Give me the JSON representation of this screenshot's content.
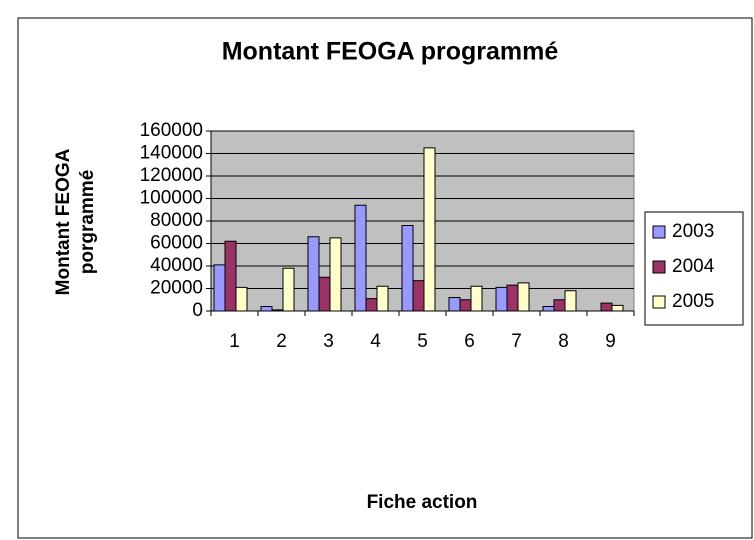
{
  "chart_data": {
    "type": "bar",
    "title": "Montant FEOGA programmé",
    "x_label": "Fiche action",
    "y_label": [
      "Montant FEOGA",
      "porgrammé"
    ],
    "categories": [
      "1",
      "2",
      "3",
      "4",
      "5",
      "6",
      "7",
      "8",
      "9"
    ],
    "series": [
      {
        "name": "2003",
        "color": "#9999ff",
        "values": [
          41000,
          4000,
          66000,
          94000,
          76000,
          12000,
          21000,
          4000,
          null
        ]
      },
      {
        "name": "2004",
        "color": "#993366",
        "values": [
          62000,
          1000,
          30000,
          11000,
          27000,
          10000,
          23000,
          10000,
          7000
        ]
      },
      {
        "name": "2005",
        "color": "#ffffcc",
        "values": [
          21000,
          38000,
          65000,
          22000,
          145000,
          22000,
          25000,
          18000,
          5000
        ]
      }
    ],
    "ylim": [
      0,
      160000
    ],
    "yticks": [
      0,
      20000,
      40000,
      60000,
      80000,
      100000,
      120000,
      140000,
      160000
    ],
    "grid": true,
    "legend": "right"
  }
}
